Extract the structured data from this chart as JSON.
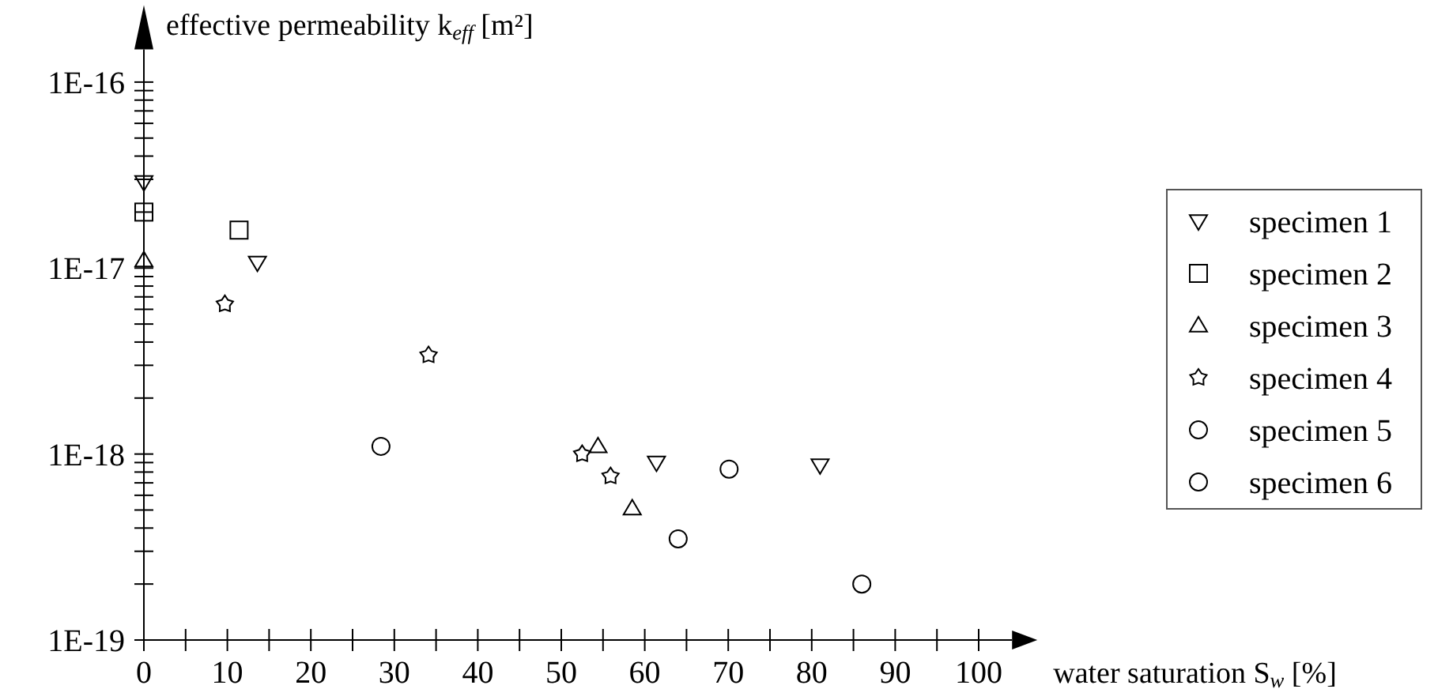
{
  "chart_data": {
    "type": "scatter",
    "xlabel": "water saturation S$_{w}$ [%]",
    "ylabel": "effective permeability k$_{eff}$ [m²]",
    "log": "y",
    "grid": false,
    "legend": "right",
    "xlim": [
      0,
      104
    ],
    "ylim": [
      1e-19,
      1.5e-16
    ],
    "xticks": [
      0,
      {
        "value": 5,
        "label": null
      },
      10,
      {
        "value": 15,
        "label": null
      },
      20,
      {
        "value": 25,
        "label": null
      },
      30,
      {
        "value": 35,
        "label": null
      },
      40,
      {
        "value": 45,
        "label": null
      },
      50,
      {
        "value": 55,
        "label": null
      },
      60,
      {
        "value": 65,
        "label": null
      },
      70,
      {
        "value": 75,
        "label": null
      },
      80,
      {
        "value": 85,
        "label": null
      },
      90,
      {
        "value": 95,
        "label": null
      },
      100
    ],
    "yticks": [
      {
        "value": 1e-19,
        "label": "1E-19"
      },
      {
        "value": 2e-19,
        "label": null
      },
      {
        "value": 3e-19,
        "label": null
      },
      {
        "value": 4e-19,
        "label": null
      },
      {
        "value": 5e-19,
        "label": null
      },
      {
        "value": 6e-19,
        "label": null
      },
      {
        "value": 7e-19,
        "label": null
      },
      {
        "value": 8e-19,
        "label": null
      },
      {
        "value": 9e-19,
        "label": null
      },
      {
        "value": 1e-18,
        "label": "1E-18"
      },
      {
        "value": 2e-18,
        "label": null
      },
      {
        "value": 3e-18,
        "label": null
      },
      {
        "value": 4e-18,
        "label": null
      },
      {
        "value": 5e-18,
        "label": null
      },
      {
        "value": 6e-18,
        "label": null
      },
      {
        "value": 7e-18,
        "label": null
      },
      {
        "value": 8e-18,
        "label": null
      },
      {
        "value": 9e-18,
        "label": null
      },
      {
        "value": 1e-17,
        "label": "1E-17"
      },
      {
        "value": 2e-17,
        "label": null
      },
      {
        "value": 3e-17,
        "label": null
      },
      {
        "value": 4e-17,
        "label": null
      },
      {
        "value": 5e-17,
        "label": null
      },
      {
        "value": 6e-17,
        "label": null
      },
      {
        "value": 7e-17,
        "label": null
      },
      {
        "value": 8e-17,
        "label": null
      },
      {
        "value": 9e-17,
        "label": null
      },
      {
        "value": 1e-16,
        "label": "1E-16"
      }
    ],
    "series": [
      {
        "name": "specimen 1",
        "color": "#000000",
        "marker": "triangle-down",
        "x": [
          0,
          13.6,
          61.4,
          81
        ],
        "values": [
          2.9e-17,
          1.07e-17,
          9e-19,
          8.7e-19
        ]
      },
      {
        "name": "specimen 2",
        "color": "#000000",
        "marker": "square",
        "x": [
          0,
          11.4
        ],
        "values": [
          2e-17,
          1.6e-17
        ]
      },
      {
        "name": "specimen 3",
        "color": "#000000",
        "marker": "triangle",
        "x": [
          0,
          54.4,
          58.5
        ],
        "values": [
          1.1e-17,
          1.1e-18,
          5.1e-19
        ]
      },
      {
        "name": "specimen 4",
        "color": "#000000",
        "marker": "star",
        "x": [
          9.7,
          34.1,
          52.5,
          55.9
        ],
        "values": [
          6.4e-18,
          3.4e-18,
          1e-18,
          7.6e-19
        ]
      },
      {
        "name": "specimen 5",
        "color": "#000000",
        "marker": "circle",
        "x": [
          28.4,
          64
        ],
        "values": [
          1.1e-18,
          3.5e-19
        ]
      },
      {
        "name": "specimen 6",
        "color": "#000000",
        "marker": "circle",
        "x": [
          70.1,
          86
        ],
        "values": [
          8.3e-19,
          2e-19
        ]
      }
    ]
  }
}
